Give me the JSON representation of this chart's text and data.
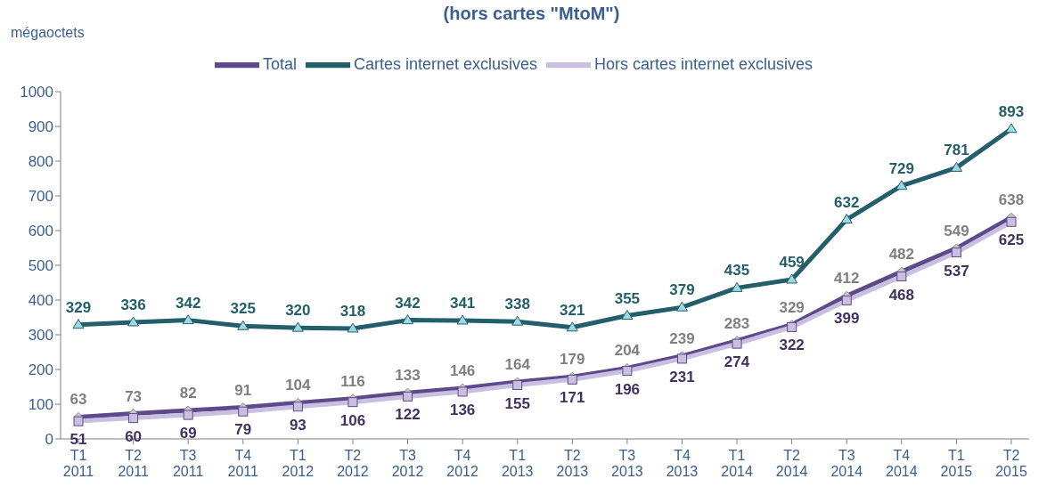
{
  "chart_data": {
    "type": "line",
    "title": "(hors cartes \"MtoM\")",
    "ylabel": "mégaoctets",
    "categories": [
      "T1 2011",
      "T2 2011",
      "T3 2011",
      "T4 2011",
      "T1 2012",
      "T2 2012",
      "T3 2012",
      "T4 2012",
      "T1 2013",
      "T2 2013",
      "T3 2013",
      "T4 2013",
      "T1 2014",
      "T2 2014",
      "T3 2014",
      "T4 2014",
      "T1 2015",
      "T2 2015"
    ],
    "series": [
      {
        "name": "Total",
        "color": "#5e4a8b",
        "marker": "diamond",
        "values": [
          63,
          73,
          82,
          91,
          104,
          116,
          133,
          146,
          164,
          179,
          204,
          239,
          283,
          329,
          412,
          482,
          549,
          638
        ]
      },
      {
        "name": "Cartes internet exclusives",
        "color": "#235f6b",
        "marker": "triangle",
        "values": [
          329,
          336,
          342,
          325,
          320,
          318,
          342,
          341,
          338,
          321,
          355,
          379,
          435,
          459,
          632,
          729,
          781,
          893
        ]
      },
      {
        "name": "Hors cartes internet exclusives",
        "color": "#c9bfe0",
        "marker": "square",
        "values": [
          51,
          60,
          69,
          79,
          93,
          106,
          122,
          136,
          155,
          171,
          196,
          231,
          274,
          322,
          399,
          468,
          537,
          625
        ]
      }
    ],
    "ylim": [
      0,
      1000
    ],
    "yticks": [
      0,
      100,
      200,
      300,
      400,
      500,
      600,
      700,
      800,
      900,
      1000
    ],
    "grid": false,
    "legend": "top",
    "data_labels": true,
    "line_style": "solid"
  }
}
